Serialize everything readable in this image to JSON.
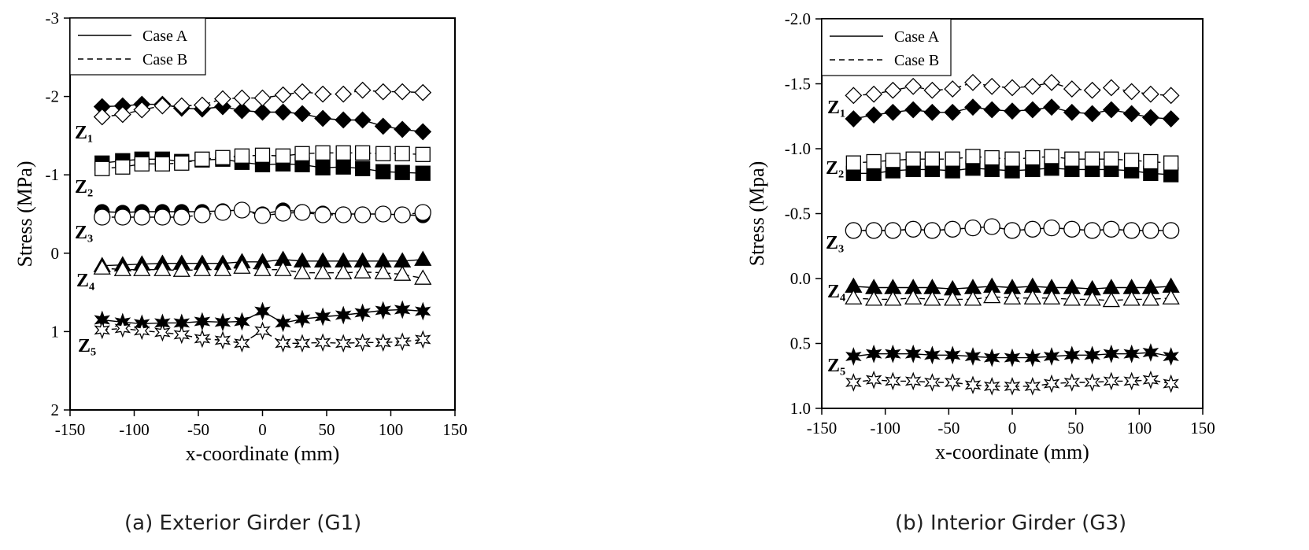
{
  "chart_data": [
    {
      "type": "scatter",
      "caption": "(a) Exterior Girder (G1)",
      "xlabel": "x-coordinate (mm)",
      "ylabel": "Stress (MPa)",
      "xlim": [
        -150,
        150
      ],
      "ylim": [
        2,
        -3
      ],
      "y_inverted": true,
      "xticks": [
        -150,
        -100,
        -50,
        0,
        50,
        100,
        150
      ],
      "xtick_labels": [
        "-150",
        "-100",
        "-50",
        "0",
        "50",
        "100",
        "150"
      ],
      "yticks": [
        -3,
        -2,
        -1,
        0,
        1,
        2
      ],
      "ytick_labels": [
        "-3",
        "-2",
        "-1",
        "0",
        "1",
        "2"
      ],
      "legend": {
        "position": "top-left",
        "entries": [
          "Case A",
          "Case B"
        ],
        "styles": [
          "solid",
          "dashed"
        ]
      },
      "x": [
        -125,
        -109,
        -94,
        -78,
        -63,
        -47,
        -31,
        -16,
        0,
        16,
        31,
        47,
        63,
        78,
        94,
        109,
        125
      ],
      "series": [
        {
          "name": "Case A",
          "label": "Z1",
          "marker": "diamond-filled",
          "values": [
            -1.87,
            -1.88,
            -1.9,
            -1.9,
            -1.85,
            -1.84,
            -1.87,
            -1.82,
            -1.8,
            -1.8,
            -1.78,
            -1.72,
            -1.7,
            -1.7,
            -1.62,
            -1.58,
            -1.55
          ]
        },
        {
          "name": "Case B",
          "label": "Z1",
          "marker": "diamond-open",
          "values": [
            -1.74,
            -1.77,
            -1.83,
            -1.88,
            -1.88,
            -1.89,
            -1.97,
            -1.98,
            -1.98,
            -2.02,
            -2.06,
            -2.03,
            -2.03,
            -2.08,
            -2.06,
            -2.06,
            -2.05
          ]
        },
        {
          "name": "Case A",
          "label": "Z2",
          "marker": "square-filled",
          "values": [
            -1.15,
            -1.18,
            -1.2,
            -1.2,
            -1.17,
            -1.19,
            -1.2,
            -1.16,
            -1.13,
            -1.14,
            -1.13,
            -1.09,
            -1.1,
            -1.08,
            -1.04,
            -1.03,
            -1.02
          ]
        },
        {
          "name": "Case B",
          "label": "Z2",
          "marker": "square-open",
          "values": [
            -1.08,
            -1.1,
            -1.14,
            -1.14,
            -1.15,
            -1.2,
            -1.22,
            -1.24,
            -1.25,
            -1.24,
            -1.27,
            -1.28,
            -1.28,
            -1.28,
            -1.27,
            -1.27,
            -1.26
          ]
        },
        {
          "name": "Case A",
          "label": "Z3",
          "marker": "circle-filled",
          "values": [
            -0.53,
            -0.52,
            -0.53,
            -0.53,
            -0.53,
            -0.53,
            -0.54,
            -0.55,
            -0.5,
            -0.55,
            -0.53,
            -0.51,
            -0.5,
            -0.5,
            -0.5,
            -0.49,
            -0.48
          ]
        },
        {
          "name": "Case B",
          "label": "Z3",
          "marker": "circle-open",
          "values": [
            -0.46,
            -0.46,
            -0.46,
            -0.46,
            -0.46,
            -0.49,
            -0.52,
            -0.55,
            -0.48,
            -0.51,
            -0.52,
            -0.49,
            -0.49,
            -0.49,
            -0.5,
            -0.49,
            -0.52
          ]
        },
        {
          "name": "Case A",
          "label": "Z4",
          "marker": "triangle-filled",
          "values": [
            0.16,
            0.15,
            0.14,
            0.13,
            0.13,
            0.13,
            0.13,
            0.11,
            0.11,
            0.08,
            0.1,
            0.1,
            0.1,
            0.1,
            0.1,
            0.1,
            0.08
          ]
        },
        {
          "name": "Case B",
          "label": "Z4",
          "marker": "triangle-open",
          "values": [
            0.19,
            0.21,
            0.21,
            0.21,
            0.22,
            0.21,
            0.21,
            0.18,
            0.21,
            0.21,
            0.25,
            0.25,
            0.25,
            0.24,
            0.25,
            0.27,
            0.32
          ]
        },
        {
          "name": "Case A",
          "label": "Z5",
          "marker": "star-filled",
          "values": [
            0.85,
            0.88,
            0.9,
            0.89,
            0.89,
            0.87,
            0.88,
            0.87,
            0.74,
            0.89,
            0.84,
            0.81,
            0.79,
            0.76,
            0.73,
            0.72,
            0.74
          ]
        },
        {
          "name": "Case B",
          "label": "Z5",
          "marker": "star-open",
          "values": [
            0.98,
            0.96,
            0.99,
            1.01,
            1.04,
            1.09,
            1.11,
            1.15,
            0.99,
            1.15,
            1.15,
            1.14,
            1.15,
            1.14,
            1.14,
            1.13,
            1.1
          ]
        }
      ],
      "series_labels": [
        "Z₁",
        "Z₂",
        "Z₃",
        "Z₄",
        "Z₅"
      ]
    },
    {
      "type": "scatter",
      "caption": "(b) Interior Girder (G3)",
      "xlabel": "x-coordinate (mm)",
      "ylabel": "Stress (Mpa)",
      "xlim": [
        -150,
        150
      ],
      "ylim": [
        1.0,
        -2.0
      ],
      "y_inverted": true,
      "xticks": [
        -150,
        -100,
        -50,
        0,
        50,
        100,
        150
      ],
      "xtick_labels": [
        "-150",
        "-100",
        "-50",
        "0",
        "50",
        "100",
        "150"
      ],
      "yticks": [
        -2.0,
        -1.5,
        -1.0,
        -0.5,
        0.0,
        0.5,
        1.0
      ],
      "ytick_labels": [
        "-2.0",
        "-1.5",
        "-1.0",
        "-0.5",
        "0.0",
        "0.5",
        "1.0"
      ],
      "legend": {
        "position": "top-left",
        "entries": [
          "Case A",
          "Case B"
        ],
        "styles": [
          "solid",
          "dashed"
        ]
      },
      "x": [
        -125,
        -109,
        -94,
        -78,
        -63,
        -47,
        -31,
        -16,
        0,
        16,
        31,
        47,
        63,
        78,
        94,
        109,
        125
      ],
      "series": [
        {
          "name": "Case A",
          "label": "Z1",
          "marker": "diamond-filled",
          "values": [
            -1.23,
            -1.26,
            -1.28,
            -1.3,
            -1.28,
            -1.28,
            -1.32,
            -1.3,
            -1.29,
            -1.3,
            -1.32,
            -1.28,
            -1.27,
            -1.3,
            -1.27,
            -1.24,
            -1.23
          ]
        },
        {
          "name": "Case B",
          "label": "Z1",
          "marker": "diamond-open",
          "values": [
            -1.41,
            -1.42,
            -1.45,
            -1.48,
            -1.45,
            -1.46,
            -1.51,
            -1.48,
            -1.47,
            -1.48,
            -1.51,
            -1.46,
            -1.45,
            -1.47,
            -1.44,
            -1.42,
            -1.41
          ]
        },
        {
          "name": "Case A",
          "label": "Z2",
          "marker": "square-filled",
          "values": [
            -0.81,
            -0.81,
            -0.83,
            -0.84,
            -0.84,
            -0.83,
            -0.85,
            -0.84,
            -0.83,
            -0.84,
            -0.85,
            -0.84,
            -0.84,
            -0.84,
            -0.83,
            -0.81,
            -0.8
          ]
        },
        {
          "name": "Case B",
          "label": "Z2",
          "marker": "square-open",
          "values": [
            -0.89,
            -0.9,
            -0.91,
            -0.92,
            -0.92,
            -0.92,
            -0.94,
            -0.93,
            -0.92,
            -0.93,
            -0.94,
            -0.92,
            -0.92,
            -0.92,
            -0.91,
            -0.9,
            -0.89
          ]
        },
        {
          "name": "Case A",
          "label": "Z3",
          "marker": "circle-filled",
          "values": [
            -0.37,
            -0.37,
            -0.37,
            -0.38,
            -0.37,
            -0.38,
            -0.39,
            -0.4,
            -0.37,
            -0.38,
            -0.39,
            -0.38,
            -0.37,
            -0.38,
            -0.37,
            -0.37,
            -0.37
          ]
        },
        {
          "name": "Case B",
          "label": "Z3",
          "marker": "circle-open",
          "values": [
            -0.37,
            -0.37,
            -0.37,
            -0.38,
            -0.37,
            -0.38,
            -0.39,
            -0.4,
            -0.37,
            -0.38,
            -0.39,
            -0.38,
            -0.37,
            -0.38,
            -0.37,
            -0.37,
            -0.37
          ]
        },
        {
          "name": "Case A",
          "label": "Z4",
          "marker": "triangle-filled",
          "values": [
            0.06,
            0.07,
            0.07,
            0.07,
            0.07,
            0.08,
            0.07,
            0.06,
            0.07,
            0.06,
            0.07,
            0.07,
            0.08,
            0.07,
            0.07,
            0.07,
            0.06
          ]
        },
        {
          "name": "Case B",
          "label": "Z4",
          "marker": "triangle-open",
          "values": [
            0.15,
            0.16,
            0.16,
            0.15,
            0.16,
            0.16,
            0.16,
            0.14,
            0.15,
            0.15,
            0.15,
            0.16,
            0.16,
            0.17,
            0.16,
            0.16,
            0.15
          ]
        },
        {
          "name": "Case A",
          "label": "Z5",
          "marker": "star-filled",
          "values": [
            0.6,
            0.58,
            0.58,
            0.58,
            0.59,
            0.59,
            0.6,
            0.61,
            0.61,
            0.61,
            0.6,
            0.59,
            0.59,
            0.58,
            0.58,
            0.57,
            0.6
          ]
        },
        {
          "name": "Case B",
          "label": "Z5",
          "marker": "star-open",
          "values": [
            0.8,
            0.78,
            0.79,
            0.79,
            0.8,
            0.8,
            0.82,
            0.83,
            0.83,
            0.83,
            0.81,
            0.8,
            0.8,
            0.79,
            0.79,
            0.78,
            0.81
          ]
        }
      ],
      "series_labels": [
        "Z₁",
        "Z₂",
        "Z₃",
        "Z₄",
        "Z₅"
      ]
    }
  ]
}
